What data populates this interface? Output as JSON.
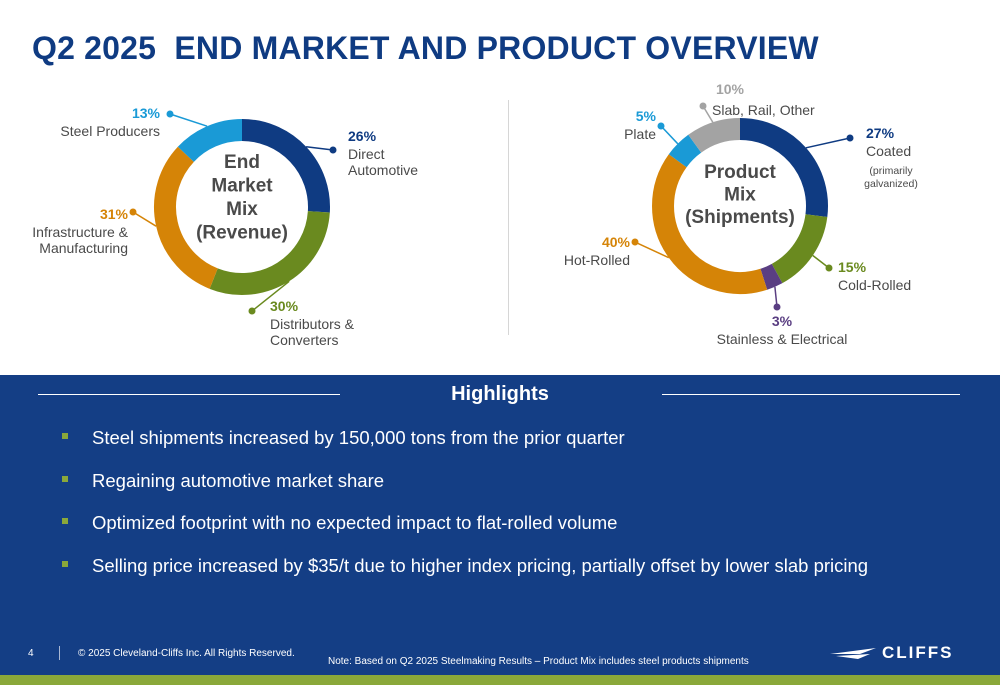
{
  "page": {
    "title": "Q2 2025  END MARKET AND PRODUCT OVERVIEW"
  },
  "chart_data": [
    {
      "type": "pie",
      "title_lines": [
        "End",
        "Market",
        "Mix",
        "(Revenue)"
      ],
      "slices": [
        {
          "pct": "26%",
          "value": 26,
          "label_lines": [
            "Direct",
            "Automotive"
          ],
          "color": "#0f3b82"
        },
        {
          "pct": "30%",
          "value": 30,
          "label_lines": [
            "Distributors &",
            "Converters"
          ],
          "color": "#6a8a1f"
        },
        {
          "pct": "31%",
          "value": 31,
          "label_lines": [
            "Infrastructure &",
            "Manufacturing"
          ],
          "color": "#d58407"
        },
        {
          "pct": "13%",
          "value": 13,
          "label_lines": [
            "Steel Producers"
          ],
          "color": "#1a9ad6"
        }
      ]
    },
    {
      "type": "pie",
      "title_lines": [
        "Product",
        "Mix",
        "(Shipments)"
      ],
      "slices": [
        {
          "pct": "27%",
          "value": 27,
          "label_lines": [
            "Coated"
          ],
          "sublabel_lines": [
            "(primarily",
            "galvanized)"
          ],
          "color": "#0f3b82"
        },
        {
          "pct": "15%",
          "value": 15,
          "label_lines": [
            "Cold-Rolled"
          ],
          "color": "#6a8a1f"
        },
        {
          "pct": "3%",
          "value": 3,
          "label_lines": [
            "Stainless & Electrical"
          ],
          "color": "#5a3e82"
        },
        {
          "pct": "40%",
          "value": 40,
          "label_lines": [
            "Hot-Rolled"
          ],
          "color": "#d58407"
        },
        {
          "pct": "5%",
          "value": 5,
          "label_lines": [
            "Plate"
          ],
          "color": "#1a9ad6"
        },
        {
          "pct": "10%",
          "value": 10,
          "label_lines": [
            "Slab, Rail, Other"
          ],
          "color": "#a3a3a3"
        }
      ]
    }
  ],
  "highlights": {
    "title": "Highlights",
    "items": [
      "Steel shipments increased by 150,000 tons from the prior quarter",
      "Regaining automotive market share",
      "Optimized footprint with no expected impact to flat-rolled volume",
      "Selling price increased by $35/t due to higher index pricing, partially offset by lower slab pricing"
    ]
  },
  "footer": {
    "page_number": "4",
    "copyright": "© 2025 Cleveland-Cliffs Inc. All Rights Reserved.",
    "note": "Note: Based on Q2 2025 Steelmaking Results – Product Mix includes steel products shipments",
    "logo_text": "CLIFFS"
  },
  "colors": {
    "title": "#0f3b82",
    "panel": "#143e85",
    "accent_green": "#8aa83a"
  }
}
